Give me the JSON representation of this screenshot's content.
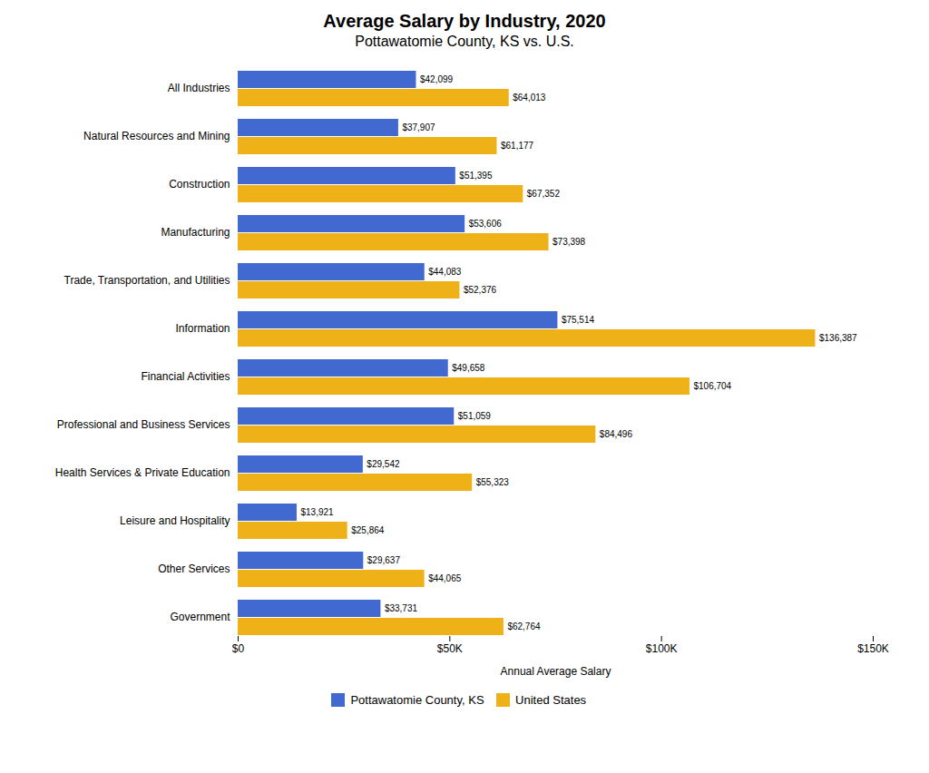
{
  "chart_data": {
    "type": "bar",
    "orientation": "horizontal",
    "title": "Average Salary by Industry, 2020",
    "subtitle": "Pottawatomie County, KS vs. U.S.",
    "xlabel": "Annual Average Salary",
    "categories": [
      "All Industries",
      "Natural Resources and Mining",
      "Construction",
      "Manufacturing",
      "Trade, Transportation, and Utilities",
      "Information",
      "Financial Activities",
      "Professional and Business Services",
      "Health Services & Private Education",
      "Leisure and Hospitality",
      "Other Services",
      "Government"
    ],
    "series": [
      {
        "name": "Pottawatomie County, KS",
        "values": [
          42099,
          37907,
          51395,
          53606,
          44083,
          75514,
          49658,
          51059,
          29542,
          13921,
          29637,
          33731
        ],
        "value_labels": [
          "$42,099",
          "$37,907",
          "$51,395",
          "$53,606",
          "$44,083",
          "$75,514",
          "$49,658",
          "$51,059",
          "$29,542",
          "$13,921",
          "$29,637",
          "$33,731"
        ]
      },
      {
        "name": "United States",
        "values": [
          64013,
          61177,
          67352,
          73398,
          52376,
          136387,
          106704,
          84496,
          55323,
          25864,
          44065,
          62764
        ],
        "value_labels": [
          "$64,013",
          "$61,177",
          "$67,352",
          "$73,398",
          "$52,376",
          "$136,387",
          "$106,704",
          "$84,496",
          "$55,323",
          "$25,864",
          "$44,065",
          "$62,764"
        ]
      }
    ],
    "xlim": [
      0,
      150000
    ],
    "xticks": [
      {
        "value": 0,
        "label": "$0"
      },
      {
        "value": 50000,
        "label": "$50K"
      },
      {
        "value": 100000,
        "label": "$100K"
      },
      {
        "value": 150000,
        "label": "$150K"
      }
    ],
    "grid": false,
    "legend": "bottom",
    "data_labels": true
  }
}
